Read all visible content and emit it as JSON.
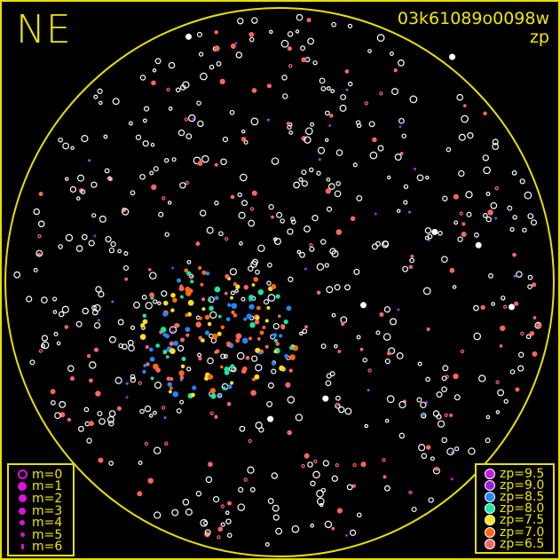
{
  "plot": {
    "direction_label": "NE",
    "image_id": "03k61089o0098w",
    "mode": "zp",
    "horizon_color": "#e8e000",
    "ring_color": "#ffffff"
  },
  "magnitude_legend": [
    {
      "label": "m=0",
      "symbol": "open-circle"
    },
    {
      "label": "m=1",
      "symbol": "filled-circle"
    },
    {
      "label": "m=2",
      "symbol": "filled-circle"
    },
    {
      "label": "m=3",
      "symbol": "filled-circle"
    },
    {
      "label": "m=4",
      "symbol": "filled-circle"
    },
    {
      "label": "m=5",
      "symbol": "filled-circle"
    },
    {
      "label": "m=6",
      "symbol": "filled-circle"
    }
  ],
  "zp_legend": [
    {
      "label": "zp=9.5",
      "color": "#c818f0"
    },
    {
      "label": "zp=9.0",
      "color": "#a020e0"
    },
    {
      "label": "zp=8.5",
      "color": "#2088ff"
    },
    {
      "label": "zp=8.0",
      "color": "#18e8a0"
    },
    {
      "label": "zp=7.5",
      "color": "#ffe018"
    },
    {
      "label": "zp=7.0",
      "color": "#ff6a10"
    },
    {
      "label": "zp=6.5",
      "color": "#ff6464"
    }
  ]
}
